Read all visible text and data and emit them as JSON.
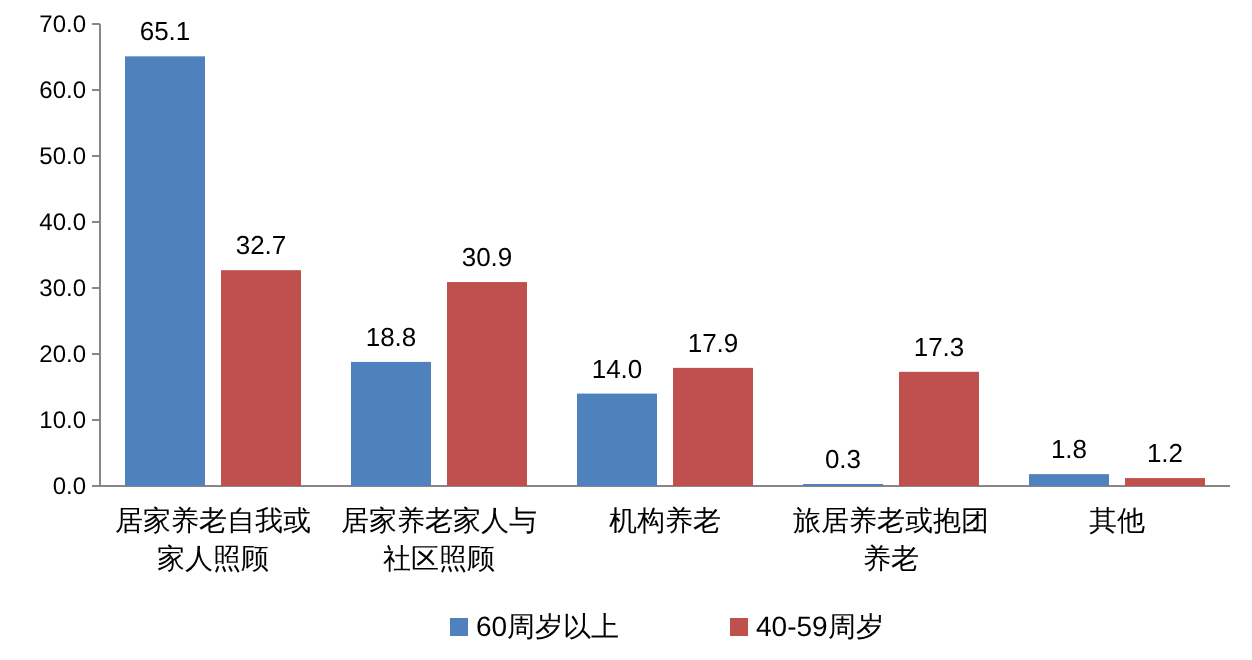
{
  "chart_data": {
    "type": "bar",
    "categories": [
      "居家养老自我或家人照顾",
      "居家养老家人与社区照顾",
      "机构养老",
      "旅居养老或抱团养老",
      "其他"
    ],
    "series": [
      {
        "name": "60周岁以上",
        "color": "#4f81bd",
        "values": [
          65.1,
          18.8,
          14.0,
          0.3,
          1.8
        ],
        "value_labels": [
          "65.1",
          "18.8",
          "14.0",
          "0.3",
          "1.8"
        ]
      },
      {
        "name": "40-59周岁",
        "color": "#c0504d",
        "values": [
          32.7,
          30.9,
          17.9,
          17.3,
          1.2
        ],
        "value_labels": [
          "32.7",
          "30.9",
          "17.9",
          "17.3",
          "1.2"
        ]
      }
    ],
    "ylim": [
      0,
      70
    ],
    "yticks": [
      {
        "value": 0,
        "label": "0.0"
      },
      {
        "value": 10,
        "label": "10.0"
      },
      {
        "value": 20,
        "label": "20.0"
      },
      {
        "value": 30,
        "label": "30.0"
      },
      {
        "value": 40,
        "label": "40.0"
      },
      {
        "value": 50,
        "label": "50.0"
      },
      {
        "value": 60,
        "label": "60.0"
      },
      {
        "value": 70,
        "label": "70.0"
      }
    ],
    "legend": "bottom"
  }
}
